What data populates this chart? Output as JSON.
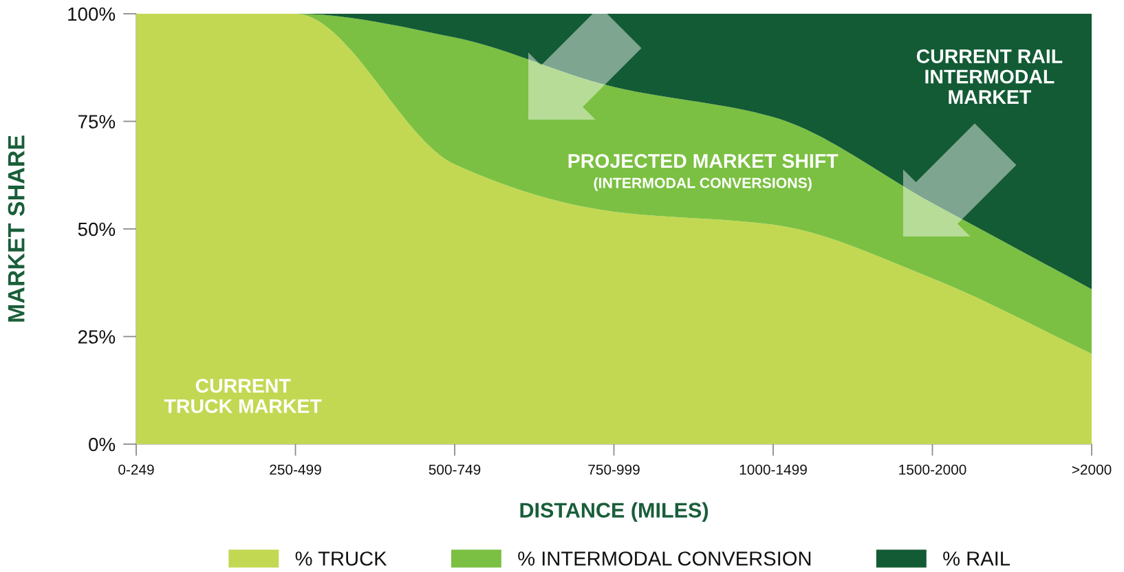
{
  "chart_data": {
    "type": "area",
    "stacked": true,
    "xlabel": "DISTANCE (MILES)",
    "ylabel": "MARKET SHARE",
    "categories": [
      "0-249",
      "250-499",
      "500-749",
      "750-999",
      "1000-1499",
      "1500-2000",
      ">2000"
    ],
    "ylim": [
      0,
      100
    ],
    "yticks": [
      {
        "value": 0,
        "label": "0%"
      },
      {
        "value": 25,
        "label": "25%"
      },
      {
        "value": 50,
        "label": "50%"
      },
      {
        "value": 75,
        "label": "75%"
      },
      {
        "value": 100,
        "label": "100%"
      }
    ],
    "series": [
      {
        "name": "% TRUCK",
        "color": "#c3d852",
        "values": [
          100,
          100,
          65,
          54,
          51,
          38.5,
          21
        ]
      },
      {
        "name": "% INTERMODAL CONVERSION",
        "color": "#7bc042",
        "values": [
          0,
          0,
          29.5,
          29,
          25,
          17.5,
          15
        ]
      },
      {
        "name": "% RAIL",
        "color": "#135b35",
        "values": [
          0,
          0,
          5.5,
          17,
          24,
          44,
          64
        ]
      }
    ],
    "legend": "bottom",
    "annotations": [
      "CURRENT\nTRUCK MARKET",
      "PROJECTED MARKET SHIFT",
      "(INTERMODAL CONVERSIONS)",
      "CURRENT RAIL\nINTERMODAL\nMARKET"
    ]
  }
}
